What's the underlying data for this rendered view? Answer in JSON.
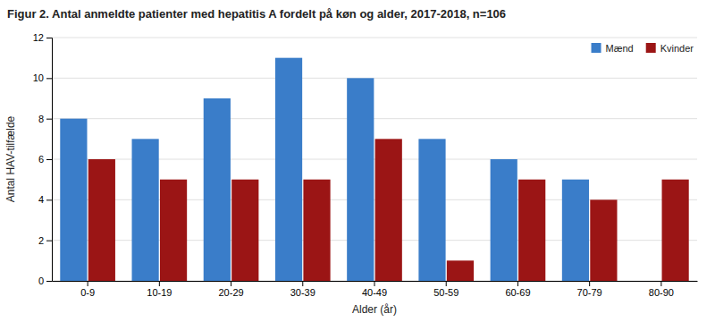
{
  "chart_data": {
    "type": "bar",
    "title": "Figur 2.  Antal anmeldte patienter med hepatitis A fordelt på køn og alder, 2017-2018, n=106",
    "xlabel": "Alder (år)",
    "ylabel": "Antal HAV-tilfælde",
    "categories": [
      "0-9",
      "10-19",
      "20-29",
      "30-39",
      "40-49",
      "50-59",
      "60-69",
      "70-79",
      "80-90"
    ],
    "series": [
      {
        "name": "Mænd",
        "color": "#3A7DC9",
        "values": [
          8,
          7,
          9,
          11,
          10,
          7,
          6,
          5,
          0
        ]
      },
      {
        "name": "Kvinder",
        "color": "#9B1515",
        "values": [
          6,
          5,
          5,
          5,
          7,
          1,
          5,
          4,
          5
        ]
      }
    ],
    "ylim": [
      0,
      12
    ],
    "yticks": [
      0,
      2,
      4,
      6,
      8,
      10,
      12
    ],
    "grid": true,
    "legend": "upper right"
  }
}
